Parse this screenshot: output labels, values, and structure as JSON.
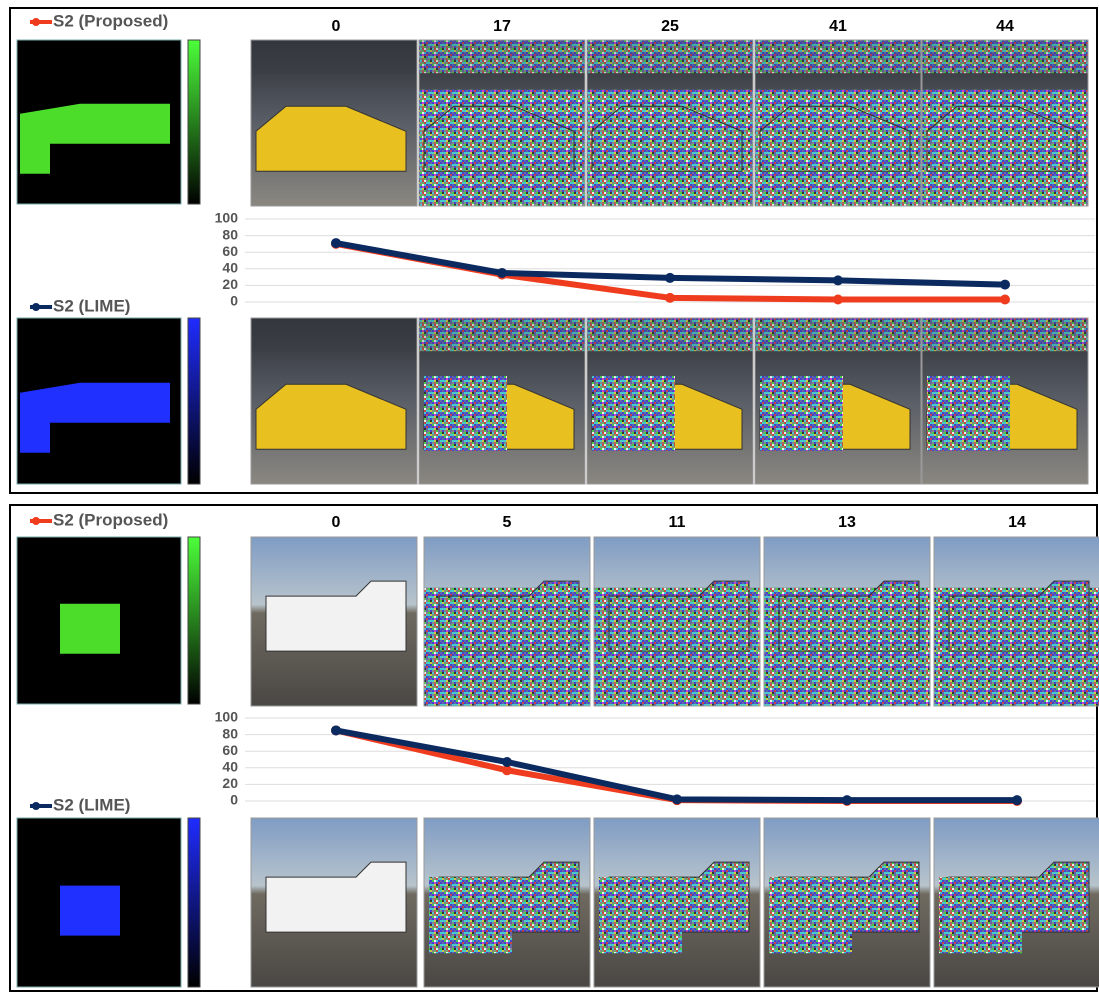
{
  "chart_data": [
    {
      "type": "line",
      "categories": [
        "0",
        "17",
        "25",
        "41",
        "44"
      ],
      "series": [
        {
          "name": "S2 (Proposed)",
          "color": "#f03c1e",
          "values": [
            70,
            33,
            5,
            3,
            3
          ]
        },
        {
          "name": "S2 (LIME)",
          "color": "#0b2a60",
          "values": [
            71,
            35,
            29,
            26,
            21
          ]
        }
      ],
      "ylim": [
        0,
        100
      ],
      "yticks": [
        0,
        20,
        40,
        60,
        80,
        100
      ],
      "grid": true
    },
    {
      "type": "line",
      "categories": [
        "0",
        "5",
        "11",
        "13",
        "14"
      ],
      "series": [
        {
          "name": "S2 (Proposed)",
          "color": "#f03c1e",
          "values": [
            85,
            37,
            1,
            0,
            0
          ]
        },
        {
          "name": "S2 (LIME)",
          "color": "#0b2a60",
          "values": [
            85,
            47,
            2,
            1,
            1
          ]
        }
      ],
      "ylim": [
        0,
        100
      ],
      "yticks": [
        0,
        20,
        40,
        60,
        80,
        100
      ],
      "grid": true
    }
  ]
}
